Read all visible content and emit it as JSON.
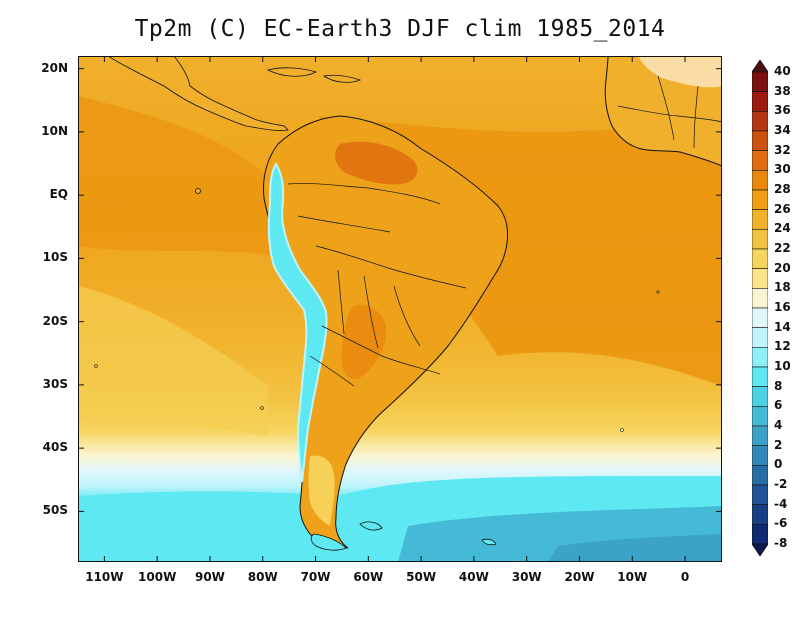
{
  "title": "Tp2m (C) EC-Earth3 DJF clim 1985_2014",
  "map": {
    "projection": "lat-lon",
    "lon_range": [
      -115,
      7
    ],
    "lat_range": [
      -58,
      22
    ],
    "lat_ticks": [
      {
        "value": 20,
        "label": "20N"
      },
      {
        "value": 10,
        "label": "10N"
      },
      {
        "value": 0,
        "label": "EQ"
      },
      {
        "value": -10,
        "label": "10S"
      },
      {
        "value": -20,
        "label": "20S"
      },
      {
        "value": -30,
        "label": "30S"
      },
      {
        "value": -40,
        "label": "40S"
      },
      {
        "value": -50,
        "label": "50S"
      }
    ],
    "lon_ticks": [
      {
        "value": -110,
        "label": "110W"
      },
      {
        "value": -100,
        "label": "100W"
      },
      {
        "value": -90,
        "label": "90W"
      },
      {
        "value": -80,
        "label": "80W"
      },
      {
        "value": -70,
        "label": "70W"
      },
      {
        "value": -60,
        "label": "60W"
      },
      {
        "value": -50,
        "label": "50W"
      },
      {
        "value": -40,
        "label": "40W"
      },
      {
        "value": -30,
        "label": "30W"
      },
      {
        "value": -20,
        "label": "20W"
      },
      {
        "value": -10,
        "label": "10W"
      },
      {
        "value": 0,
        "label": "0"
      }
    ]
  },
  "colorbar": {
    "labels": [
      "40",
      "38",
      "36",
      "34",
      "32",
      "30",
      "28",
      "26",
      "24",
      "22",
      "20",
      "18",
      "16",
      "14",
      "12",
      "10",
      "8",
      "6",
      "4",
      "2",
      "0",
      "-2",
      "-4",
      "-6",
      "-8"
    ],
    "colors": [
      "#4a0e0e",
      "#7a1010",
      "#9c1a10",
      "#b53612",
      "#cc5210",
      "#de6e10",
      "#e8880e",
      "#ee9e12",
      "#f1b22c",
      "#f3c342",
      "#f6d55e",
      "#f8e486",
      "#fbf4d2",
      "#e0f7fb",
      "#bff4fb",
      "#8ef1f8",
      "#5ee8f1",
      "#4cd1e2",
      "#44bad6",
      "#3ca2c8",
      "#3288b8",
      "#276ea7",
      "#1f5495",
      "#183e84",
      "#0f2a70",
      "#0a1a55"
    ]
  },
  "chart_data": {
    "type": "heatmap",
    "title": "Tp2m (C) EC-Earth3 DJF clim 1985_2014",
    "variable": "2 m temperature (C)",
    "model": "EC-Earth3",
    "season": "DJF",
    "period": "1985_2014",
    "lon_range": [
      -115,
      7
    ],
    "lat_range": [
      -58,
      22
    ],
    "contour_levels": [
      -8,
      -6,
      -4,
      -2,
      0,
      2,
      4,
      6,
      8,
      10,
      12,
      14,
      16,
      18,
      20,
      22,
      24,
      26,
      28,
      30,
      32,
      34,
      36,
      38,
      40
    ],
    "representative_values": [
      {
        "lat": 15,
        "lon": -60,
        "temp": 26
      },
      {
        "lat": 5,
        "lon": -40,
        "temp": 27
      },
      {
        "lat": -10,
        "lon": -30,
        "temp": 27
      },
      {
        "lat": -25,
        "lon": -20,
        "temp": 24
      },
      {
        "lat": -25,
        "lon": -100,
        "temp": 21
      },
      {
        "lat": -40,
        "lon": -20,
        "temp": 16
      },
      {
        "lat": -45,
        "lon": -60,
        "temp": 13
      },
      {
        "lat": -52,
        "lon": -40,
        "temp": 8
      },
      {
        "lat": -56,
        "lon": -5,
        "temp": 4
      },
      {
        "lat": -5,
        "lon": -60,
        "temp": 28
      },
      {
        "lat": -20,
        "lon": -70,
        "temp": 8
      }
    ]
  }
}
